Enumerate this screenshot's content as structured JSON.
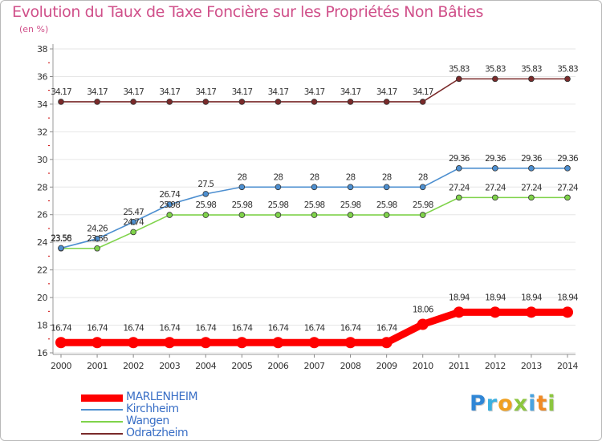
{
  "chart_data": {
    "type": "line",
    "title": "Evolution du Taux de Taxe Foncière sur les Propriétés Non Bâties",
    "ylabel": "(en %)",
    "xlabel": "",
    "ylim": [
      16,
      38
    ],
    "yticks": [
      16,
      18,
      20,
      22,
      24,
      26,
      28,
      30,
      32,
      34,
      36,
      38
    ],
    "x": [
      "2000",
      "2001",
      "2002",
      "2003",
      "2004",
      "2005",
      "2006",
      "2007",
      "2008",
      "2009",
      "2010",
      "2011",
      "2012",
      "2013",
      "2014"
    ],
    "series": [
      {
        "name": "MARLENHEIM",
        "color": "#ff0000",
        "values": [
          16.74,
          16.74,
          16.74,
          16.74,
          16.74,
          16.74,
          16.74,
          16.74,
          16.74,
          16.74,
          18.06,
          18.94,
          18.94,
          18.94,
          18.94
        ],
        "labels": [
          "16.74",
          "16.74",
          "16.74",
          "16.74",
          "16.74",
          "16.74",
          "16.74",
          "16.74",
          "16.74",
          "16.74",
          "18.06",
          "18.94",
          "18.94",
          "18.94",
          "18.94"
        ]
      },
      {
        "name": "Kirchheim",
        "color": "#4d8fd0",
        "values": [
          23.58,
          24.26,
          25.47,
          26.74,
          27.5,
          28,
          28,
          28,
          28,
          28,
          28,
          29.36,
          29.36,
          29.36,
          29.36
        ],
        "labels": [
          "23.58",
          "24.26",
          "25.47",
          "26.74",
          "27.5",
          "28",
          "28",
          "28",
          "28",
          "28",
          "28",
          "29.36",
          "29.36",
          "29.36",
          "29.36"
        ]
      },
      {
        "name": "Wangen",
        "color": "#7fd34a",
        "values": [
          23.56,
          23.56,
          24.74,
          25.98,
          25.98,
          25.98,
          25.98,
          25.98,
          25.98,
          25.98,
          25.98,
          27.24,
          27.24,
          27.24,
          27.24
        ],
        "labels": [
          "23.56",
          "23.56",
          "24.74",
          "25.98",
          "25.98",
          "25.98",
          "25.98",
          "25.98",
          "25.98",
          "25.98",
          "25.98",
          "27.24",
          "27.24",
          "27.24",
          "27.24"
        ]
      },
      {
        "name": "Odratzheim",
        "color": "#7a2a2a",
        "values": [
          34.17,
          34.17,
          34.17,
          34.17,
          34.17,
          34.17,
          34.17,
          34.17,
          34.17,
          34.17,
          34.17,
          35.83,
          35.83,
          35.83,
          35.83
        ],
        "labels": [
          "34.17",
          "34.17",
          "34.17",
          "34.17",
          "34.17",
          "34.17",
          "34.17",
          "34.17",
          "34.17",
          "34.17",
          "34.17",
          "35.83",
          "35.83",
          "35.83",
          "35.83"
        ]
      }
    ]
  },
  "brand": {
    "letters": [
      "P",
      "r",
      "o",
      "x",
      "i",
      "t",
      "i"
    ],
    "colors": [
      "#2f86d6",
      "#3bb0e0",
      "#f0a020",
      "#8cc63f",
      "#4aa3df",
      "#f08a24",
      "#8cc63f"
    ]
  }
}
